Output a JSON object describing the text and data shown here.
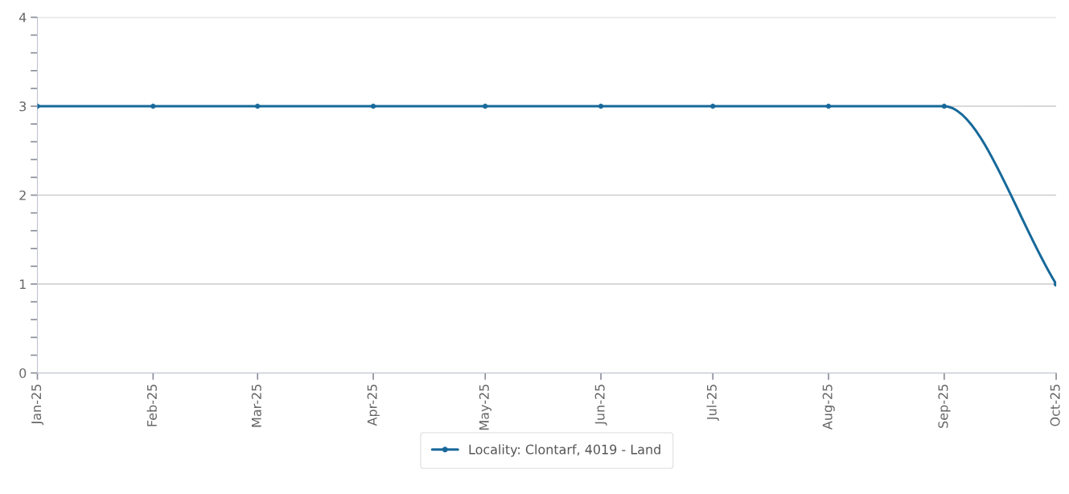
{
  "chart_data": {
    "type": "line",
    "x": [
      "2025-01",
      "2025-02",
      "2025-03",
      "2025-04",
      "2025-05",
      "2025-06",
      "2025-07",
      "2025-08",
      "2025-09",
      "2025-10"
    ],
    "series": [
      {
        "name": "Locality: Clontarf, 4019 - Land",
        "color": "#17699a",
        "values": [
          3,
          3,
          3,
          3,
          3,
          3,
          3,
          3,
          3,
          1
        ]
      }
    ],
    "xlim": [
      "2025-01",
      "2025-10"
    ],
    "xticks": [
      {
        "value": "2025-01",
        "label": "Jan-25"
      },
      {
        "value": "2025-02",
        "label": "Feb-25"
      },
      {
        "value": "2025-03",
        "label": "Mar-25"
      },
      {
        "value": "2025-04",
        "label": "Apr-25"
      },
      {
        "value": "2025-05",
        "label": "May-25"
      },
      {
        "value": "2025-06",
        "label": "Jun-25"
      },
      {
        "value": "2025-07",
        "label": "Jul-25"
      },
      {
        "value": "2025-08",
        "label": "Aug-25"
      },
      {
        "value": "2025-09",
        "label": "Sep-25"
      },
      {
        "value": "2025-10",
        "label": "Oct-25"
      }
    ],
    "ylim": [
      0,
      4
    ],
    "yticks": [
      0,
      {
        "value": 0.2,
        "label": null
      },
      {
        "value": 0.4,
        "label": null
      },
      {
        "value": 0.6,
        "label": null
      },
      {
        "value": 0.8,
        "label": null
      },
      1,
      {
        "value": 1.2,
        "label": null
      },
      {
        "value": 1.4,
        "label": null
      },
      {
        "value": 1.6,
        "label": null
      },
      {
        "value": 1.8,
        "label": null
      },
      2,
      {
        "value": 2.2,
        "label": null
      },
      {
        "value": 2.4,
        "label": null
      },
      {
        "value": 2.6,
        "label": null
      },
      {
        "value": 2.8,
        "label": null
      },
      3,
      {
        "value": 3.2,
        "label": null
      },
      {
        "value": 3.4,
        "label": null
      },
      {
        "value": 3.6,
        "label": null
      },
      {
        "value": 3.8,
        "label": null
      },
      4
    ],
    "grid": "y",
    "legend": "bottom",
    "marker": "circle",
    "line_style": "solid"
  }
}
